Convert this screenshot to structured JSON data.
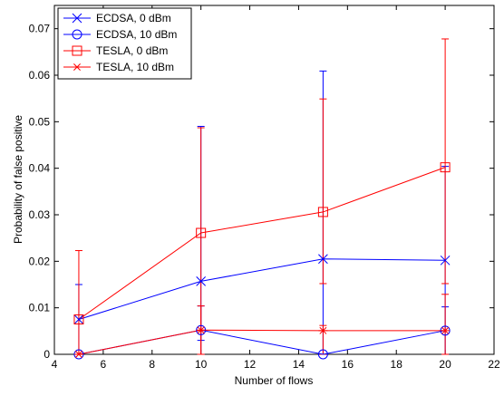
{
  "chart_data": {
    "type": "line",
    "title": "",
    "xlabel": "Number of flows",
    "ylabel": "Probability of false positive",
    "xlim": [
      4,
      22
    ],
    "ylim": [
      0,
      0.075
    ],
    "xticks": [
      4,
      6,
      8,
      10,
      12,
      14,
      16,
      18,
      20,
      22
    ],
    "yticks": [
      0,
      0.01,
      0.02,
      0.03,
      0.04,
      0.05,
      0.06,
      0.07
    ],
    "xtick_labels": [
      "4",
      "6",
      "8",
      "10",
      "12",
      "14",
      "16",
      "18",
      "20",
      "22"
    ],
    "ytick_labels": [
      "0",
      "0.01",
      "0.02",
      "0.03",
      "0.04",
      "0.05",
      "0.06",
      "0.07"
    ],
    "grid": false,
    "legend_position": "top-left",
    "x": [
      5,
      10,
      15,
      20
    ],
    "series": [
      {
        "name": "ECDSA, 0 dBm",
        "color": "#0000ff",
        "marker": "x",
        "values": [
          0.0075,
          0.0157,
          0.0205,
          0.0202
        ],
        "err_low": [
          0.0075,
          0.0127,
          0.0205,
          0.0202
        ],
        "err_high": [
          0.0075,
          0.0333,
          0.0404,
          0.0202
        ]
      },
      {
        "name": "ECDSA, 10 dBm",
        "color": "#0000ff",
        "marker": "circle",
        "values": [
          0.0,
          0.0052,
          0.0,
          0.0051
        ],
        "err_low": [
          0.0,
          0.0052,
          0.0,
          0.0051
        ],
        "err_high": [
          0.0,
          0.0052,
          0.0,
          0.0051
        ]
      },
      {
        "name": "TESLA, 0 dBm",
        "color": "#ff0000",
        "marker": "square",
        "values": [
          0.0075,
          0.0261,
          0.0306,
          0.0402
        ],
        "err_low": [
          0.0075,
          0.0261,
          0.0154,
          0.025
        ],
        "err_high": [
          0.0148,
          0.0226,
          0.0243,
          0.0276
        ]
      },
      {
        "name": "TESLA, 10 dBm",
        "color": "#ff0000",
        "marker": "star",
        "values": [
          0.0,
          0.0052,
          0.0051,
          0.0051
        ],
        "err_low": [
          0.0,
          0.0052,
          0.0051,
          0.0051
        ],
        "err_high": [
          0.0,
          0.0052,
          0.0011,
          0.0078
        ]
      }
    ]
  }
}
